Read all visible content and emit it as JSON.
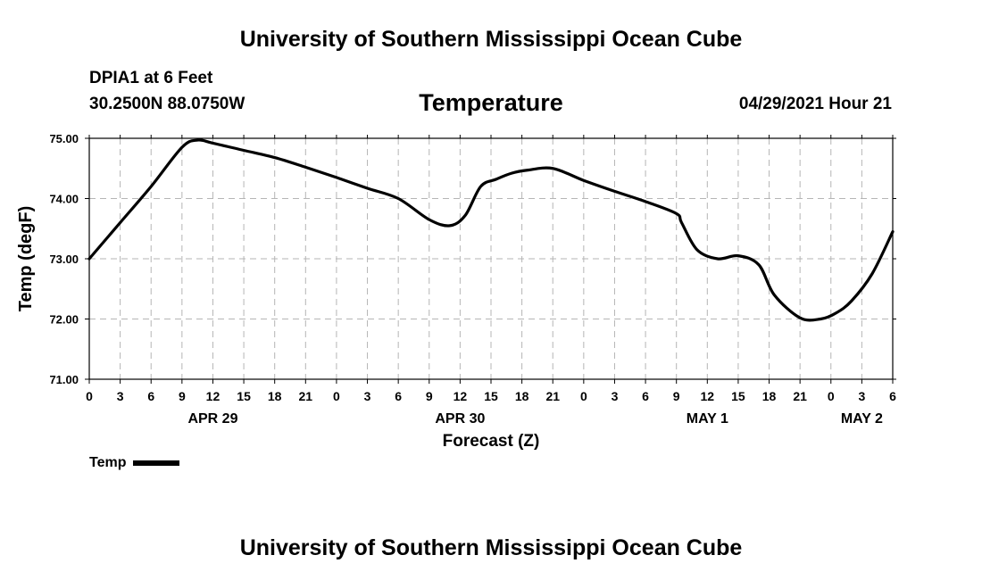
{
  "header": {
    "title": "University of Southern Mississippi Ocean Cube",
    "station_name": "DPIA1 at 6 Feet",
    "station_coords": "30.2500N  88.0750W",
    "forecast_time": "04/29/2021 Hour 21"
  },
  "footer": {
    "title": "University of Southern Mississippi Ocean Cube"
  },
  "legend": {
    "label": "Temp",
    "color": "#000000"
  },
  "chart_data": {
    "type": "line",
    "title": "Temperature",
    "xlabel": "Forecast (Z)",
    "ylabel": "Temp (degF)",
    "ylim": [
      71.0,
      75.0
    ],
    "yticks": [
      "71.00",
      "72.00",
      "73.00",
      "74.00",
      "75.00"
    ],
    "xlim": [
      0,
      78
    ],
    "xtick_labels": [
      "0",
      "3",
      "6",
      "9",
      "12",
      "15",
      "18",
      "21",
      "0",
      "3",
      "6",
      "9",
      "12",
      "15",
      "18",
      "21",
      "0",
      "3",
      "6",
      "9",
      "12",
      "15",
      "18",
      "21",
      "0",
      "3",
      "6"
    ],
    "date_labels": [
      {
        "hour": 12,
        "label": "APR 29"
      },
      {
        "hour": 36,
        "label": "APR 30"
      },
      {
        "hour": 60,
        "label": "MAY 1"
      },
      {
        "hour": 75,
        "label": "MAY 2"
      }
    ],
    "grid": true,
    "series": [
      {
        "name": "Temp",
        "x": [
          0,
          3,
          6,
          9,
          10.5,
          12,
          15,
          18,
          21,
          24,
          27,
          30,
          33,
          35,
          36.5,
          38,
          39.5,
          41,
          42.5,
          45,
          48,
          51,
          54,
          57,
          57.5,
          59,
          61,
          63,
          65,
          66.5,
          69,
          71,
          72.5,
          74,
          76,
          78
        ],
        "y": [
          73.0,
          73.6,
          74.2,
          74.85,
          74.97,
          74.92,
          74.8,
          74.68,
          74.52,
          74.35,
          74.17,
          74.0,
          73.65,
          73.55,
          73.72,
          74.2,
          74.32,
          74.42,
          74.47,
          74.5,
          74.3,
          74.12,
          73.95,
          73.75,
          73.6,
          73.15,
          73.0,
          73.05,
          72.9,
          72.4,
          72.02,
          72.0,
          72.1,
          72.3,
          72.75,
          73.45
        ]
      }
    ]
  }
}
